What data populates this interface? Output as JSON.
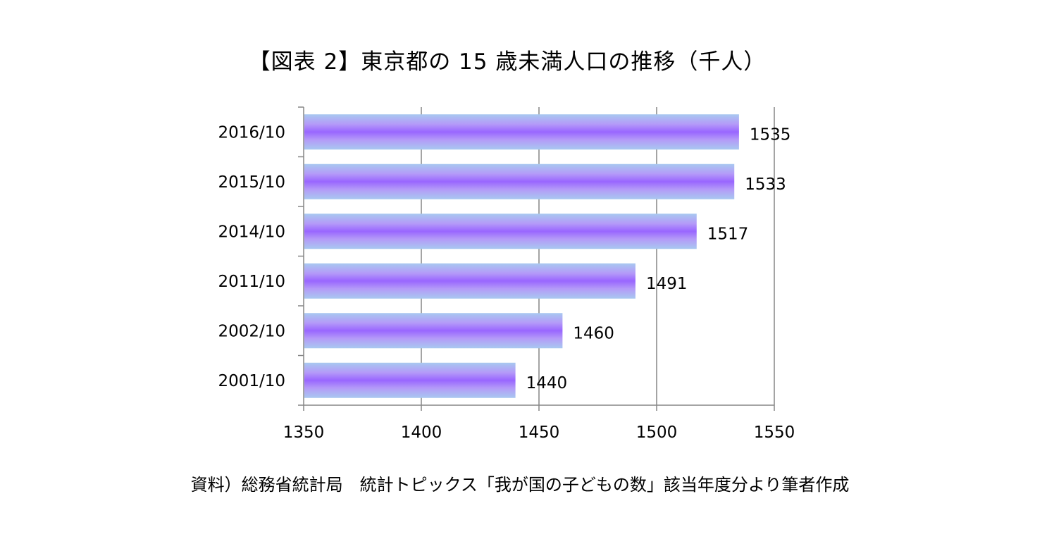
{
  "title": "【図表 2】東京都の 15 歳未満人口の推移（千人）",
  "source_note": "資料）総務省統計局　統計トピックス「我が国の子どもの数」該当年度分より筆者作成",
  "chart_data": {
    "type": "bar",
    "orientation": "horizontal",
    "title": "【図表 2】東京都の 15 歳未満人口の推移（千人）",
    "categories": [
      "2016/10",
      "2015/10",
      "2014/10",
      "2011/10",
      "2002/10",
      "2001/10"
    ],
    "values": [
      1535,
      1533,
      1517,
      1491,
      1460,
      1440
    ],
    "data_labels": [
      "1535",
      "1533",
      "1517",
      "1491",
      "1460",
      "1440"
    ],
    "xlabel": "",
    "ylabel": "",
    "xlim": [
      1350,
      1550
    ],
    "x_ticks": [
      "1350",
      "1400",
      "1450",
      "1500",
      "1550"
    ],
    "grid": "vertical",
    "legend": "none",
    "colors": {
      "bar_edge": "#a8c8f0",
      "bar_center": "#9966ff",
      "bar_mid": "#b49af8",
      "gridline": "#868686",
      "axis": "#868686"
    }
  }
}
